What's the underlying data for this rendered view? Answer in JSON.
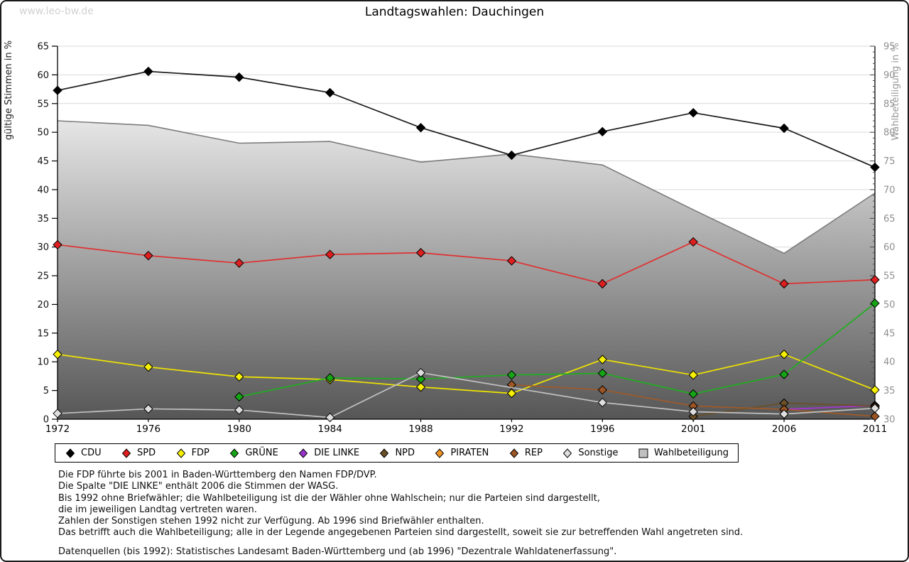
{
  "page": {
    "watermark": "www.leo-bw.de",
    "title": "Landtagswahlen: Dauchingen"
  },
  "chart_data": {
    "type": "line",
    "title": "Landtagswahlen: Dauchingen",
    "categories": [
      "1972",
      "1976",
      "1980",
      "1984",
      "1988",
      "1992",
      "1996",
      "2001",
      "2006",
      "2011"
    ],
    "left_axis": {
      "label": "gültige Stimmen in %",
      "min": 0,
      "max": 65,
      "step": 5
    },
    "right_axis": {
      "label": "Wahlbeteiligung in %",
      "min": 30,
      "max": 95,
      "step": 5
    },
    "grid": true,
    "legend_position": "bottom",
    "series": [
      {
        "name": "CDU",
        "type": "line",
        "axis": "left",
        "color": "#000000",
        "line_color": "#1a1a1a",
        "values": [
          57.3,
          60.6,
          59.6,
          56.9,
          50.8,
          46.0,
          50.1,
          53.4,
          50.7,
          43.9
        ]
      },
      {
        "name": "SPD",
        "type": "line",
        "axis": "left",
        "color": "#dd1f1f",
        "line_color": "#e03030",
        "values": [
          30.4,
          28.5,
          27.2,
          28.7,
          29.0,
          27.6,
          23.6,
          30.9,
          23.6,
          24.3
        ]
      },
      {
        "name": "FDP",
        "type": "line",
        "axis": "left",
        "color": "#f6f000",
        "line_color": "#efe400",
        "values": [
          11.3,
          9.1,
          7.4,
          6.9,
          5.6,
          4.5,
          10.4,
          7.7,
          11.3,
          5.1
        ]
      },
      {
        "name": "GRÜNE",
        "type": "line",
        "axis": "left",
        "color": "#16a516",
        "line_color": "#1fae1f",
        "values": [
          null,
          null,
          3.9,
          7.2,
          7.0,
          7.7,
          8.0,
          4.4,
          7.8,
          20.2
        ]
      },
      {
        "name": "DIE LINKE",
        "type": "line",
        "axis": "left",
        "color": "#9933cc",
        "line_color": "#a834d6",
        "values": [
          null,
          null,
          null,
          null,
          null,
          null,
          null,
          null,
          1.7,
          2.4
        ]
      },
      {
        "name": "NPD",
        "type": "line",
        "axis": "left",
        "color": "#6a4f28",
        "line_color": "#6a4f28",
        "values": [
          null,
          null,
          null,
          null,
          null,
          null,
          null,
          0.5,
          2.8,
          2.3
        ]
      },
      {
        "name": "PIRATEN",
        "type": "line",
        "axis": "left",
        "color": "#ef9122",
        "line_color": "#ef9122",
        "values": [
          null,
          null,
          null,
          null,
          null,
          null,
          null,
          null,
          null,
          2.1
        ]
      },
      {
        "name": "REP",
        "type": "line",
        "axis": "left",
        "color": "#9c5524",
        "line_color": "#a05a28",
        "values": [
          null,
          null,
          null,
          null,
          null,
          6.0,
          5.1,
          2.3,
          1.7,
          0.5
        ]
      },
      {
        "name": "Sonstige",
        "type": "line",
        "axis": "left",
        "color": "#dedede",
        "line_color": "#c2c2c2",
        "values": [
          1.0,
          1.8,
          1.6,
          0.3,
          8.1,
          null,
          2.9,
          1.3,
          0.9,
          1.9
        ]
      },
      {
        "name": "Wahlbeteiligung",
        "type": "area",
        "axis": "right",
        "color": "#c0c0c0",
        "line_color": "#7c7c7c",
        "values": [
          82.0,
          81.2,
          78.1,
          78.4,
          74.8,
          76.2,
          74.3,
          66.5,
          58.9,
          69.4
        ]
      }
    ]
  },
  "footnotes": [
    "Die FDP führte bis 2001 in Baden-Württemberg den Namen FDP/DVP.",
    "Die Spalte \"DIE LINKE\" enthält 2006 die Stimmen der WASG.",
    "Bis 1992 ohne Briefwähler; die Wahlbeteiligung ist die der Wähler ohne Wahlschein; nur die Parteien sind dargestellt,",
    "die im jeweiligen Landtag vertreten waren.",
    "Zahlen der Sonstigen stehen 1992 nicht zur Verfügung. Ab 1996 sind Briefwähler enthalten.",
    "Das betrifft auch die Wahlbeteiligung; alle in der Legende angegebenen Parteien sind dargestellt, soweit sie zur betreffenden Wahl angetreten sind.",
    "",
    "Datenquellen (bis 1992): Statistisches Landesamt Baden-Württemberg und (ab 1996) \"Dezentrale Wahldatenerfassung\"."
  ]
}
